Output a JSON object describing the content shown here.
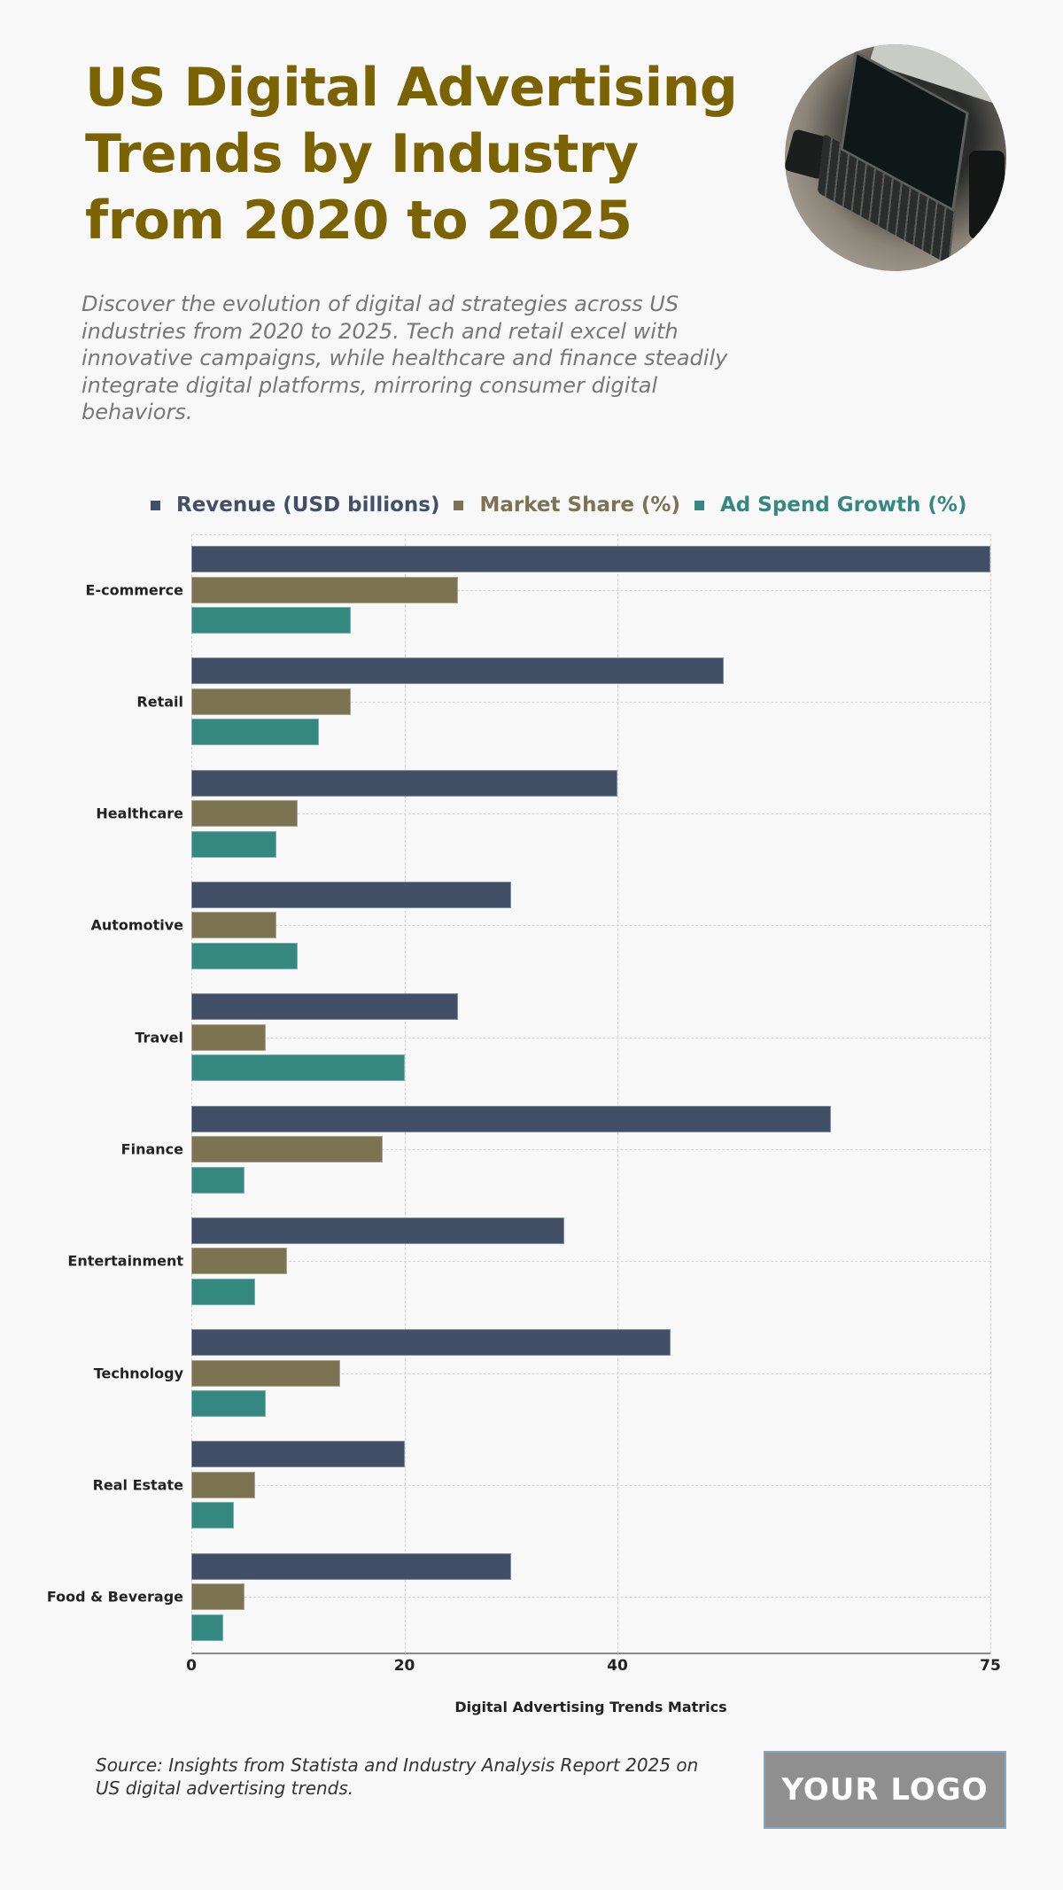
{
  "header": {
    "title": "US Digital Advertising Trends by Industry from 2020 to 2025",
    "subtitle": "Discover the evolution of digital ad strategies across US industries from 2020 to 2025. Tech and retail excel with innovative campaigns, while healthcare and finance steadily integrate digital platforms, mirroring consumer digital behaviors.",
    "image": "laptop-photo"
  },
  "colors": {
    "title": "#7a6300",
    "revenue": "#414f67",
    "market_share": "#7b7352",
    "ad_spend_growth": "#348880",
    "background": "#f8f8f8"
  },
  "legend": {
    "revenue": "Revenue (USD billions)",
    "market_share": "Market Share (%)",
    "ad_spend_growth": "Ad Spend Growth (%)"
  },
  "axis": {
    "ticks": [
      "0",
      "20",
      "40",
      "75"
    ],
    "title": "Digital Advertising Trends Matrics"
  },
  "footer": {
    "source": "Source: Insights from Statista and Industry Analysis Report 2025 on US digital advertising trends.",
    "logo": "YOUR LOGO"
  },
  "chart_data": {
    "type": "bar",
    "orientation": "horizontal",
    "title": "US Digital Advertising Trends by Industry from 2020 to 2025",
    "xlabel": "Digital Advertising Trends Matrics",
    "ylabel": "",
    "xlim": [
      0,
      75
    ],
    "xticks": [
      0,
      20,
      40,
      75
    ],
    "grid": true,
    "legend_position": "top",
    "categories": [
      "E-commerce",
      "Retail",
      "Healthcare",
      "Automotive",
      "Travel",
      "Finance",
      "Entertainment",
      "Technology",
      "Real Estate",
      "Food & Beverage"
    ],
    "series": [
      {
        "name": "Revenue (USD billions)",
        "color": "#414f67",
        "values": [
          75,
          50,
          40,
          30,
          25,
          60,
          35,
          45,
          20,
          30
        ]
      },
      {
        "name": "Market Share (%)",
        "color": "#7b7352",
        "values": [
          25,
          15,
          10,
          8,
          7,
          18,
          9,
          14,
          6,
          5
        ]
      },
      {
        "name": "Ad Spend Growth (%)",
        "color": "#348880",
        "values": [
          15,
          12,
          8,
          10,
          20,
          5,
          6,
          7,
          4,
          3
        ]
      }
    ]
  }
}
